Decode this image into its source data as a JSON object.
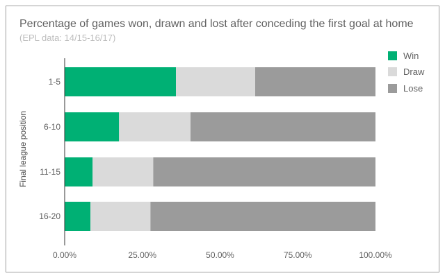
{
  "colors": {
    "win": "#00b074",
    "draw": "#dadada",
    "lose": "#9b9b9b",
    "axis": "#333333",
    "frame": "#9e9e9e"
  },
  "chart_data": {
    "type": "bar",
    "orientation": "horizontal",
    "stacked": true,
    "title": "Percentage of games won, drawn and lost after conceding the first goal at home",
    "subtitle": "(EPL data: 14/15-16/17)",
    "ylabel": "Final league position",
    "xlabel": "",
    "categories": [
      "1-5",
      "6-10",
      "11-15",
      "16-20"
    ],
    "series": [
      {
        "name": "Win",
        "color": "#00b074",
        "values": [
          35.8,
          17.5,
          9.0,
          8.3
        ]
      },
      {
        "name": "Draw",
        "color": "#dadada",
        "values": [
          25.5,
          23.0,
          19.5,
          19.3
        ]
      },
      {
        "name": "Lose",
        "color": "#9b9b9b",
        "values": [
          38.7,
          59.5,
          71.5,
          72.4
        ]
      }
    ],
    "xlim": [
      0,
      100
    ],
    "xticks": [
      "0.00%",
      "25.00%",
      "50.00%",
      "75.00%",
      "100.00%"
    ],
    "grid": false,
    "legend_position": "top-right"
  }
}
